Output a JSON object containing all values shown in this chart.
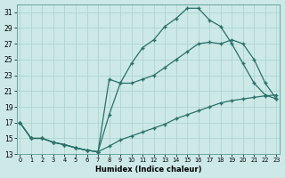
{
  "xlabel": "Humidex (Indice chaleur)",
  "bg_color": "#cce9e7",
  "grid_color": "#aed4d1",
  "line_color": "#2a7068",
  "ylim": [
    13,
    32
  ],
  "xlim": [
    -0.3,
    23.3
  ],
  "yticks": [
    13,
    15,
    17,
    19,
    21,
    23,
    25,
    27,
    29,
    31
  ],
  "xtick_labels": [
    "0",
    "1",
    "2",
    "3",
    "4",
    "5",
    "6",
    "7",
    "8",
    "9",
    "10",
    "11",
    "12",
    "13",
    "14",
    "15",
    "16",
    "17",
    "18",
    "19",
    "20",
    "21",
    "22",
    "23"
  ],
  "curve_top_x": [
    0,
    1,
    2,
    3,
    4,
    5,
    6,
    7,
    8,
    9,
    10,
    11,
    12,
    13,
    14,
    15,
    16,
    17,
    18,
    19,
    20,
    21,
    22,
    23
  ],
  "curve_top_y": [
    17,
    15,
    15,
    14.5,
    14.2,
    13.8,
    13.5,
    13.3,
    18,
    22,
    24.5,
    26.5,
    27.5,
    29.2,
    30.2,
    31.5,
    31.5,
    30.0,
    29.2,
    27.0,
    24.5,
    22.0,
    20.5,
    20.0
  ],
  "curve_mid_x": [
    0,
    1,
    2,
    3,
    4,
    5,
    6,
    7,
    8,
    9,
    10,
    11,
    12,
    13,
    14,
    15,
    16,
    17,
    18,
    19,
    20,
    21,
    22,
    23
  ],
  "curve_mid_y": [
    17,
    15,
    15,
    14.5,
    14.2,
    13.8,
    13.5,
    13.3,
    22.5,
    22.0,
    22.0,
    22.5,
    23.0,
    24.0,
    25.0,
    26.0,
    27.0,
    27.2,
    27.0,
    27.5,
    27.0,
    25.0,
    22.0,
    20.0
  ],
  "curve_bot_x": [
    0,
    1,
    2,
    3,
    4,
    5,
    6,
    7,
    8,
    9,
    10,
    11,
    12,
    13,
    14,
    15,
    16,
    17,
    18,
    19,
    20,
    21,
    22,
    23
  ],
  "curve_bot_y": [
    17,
    15,
    15,
    14.5,
    14.2,
    13.8,
    13.5,
    13.3,
    14.0,
    14.8,
    15.3,
    15.8,
    16.3,
    16.8,
    17.5,
    18.0,
    18.5,
    19.0,
    19.5,
    19.8,
    20.0,
    20.2,
    20.4,
    20.5
  ]
}
